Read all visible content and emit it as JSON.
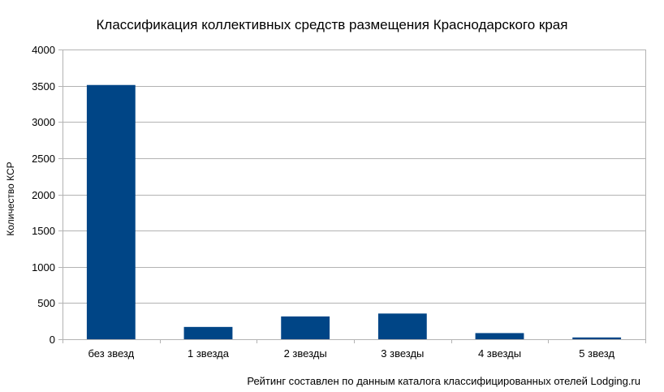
{
  "chart_data": {
    "type": "bar",
    "title": "Классификация коллективных средств размещения Краснодарского края",
    "xlabel": "",
    "ylabel": "Количество КСР",
    "categories": [
      "без звезд",
      "1 звезда",
      "2 звезды",
      "3 звезды",
      "4 звезды",
      "5 звезд"
    ],
    "values": [
      3510,
      170,
      315,
      355,
      85,
      25
    ],
    "ylim": [
      0,
      4000
    ],
    "yticks": [
      0,
      500,
      1000,
      1500,
      2000,
      2500,
      3000,
      3500,
      4000
    ],
    "grid": true,
    "legend": "none",
    "bar_color": "#004586",
    "note": "Рейтинг составлен по данным каталога классифицированных отелей Lodging.ru"
  }
}
